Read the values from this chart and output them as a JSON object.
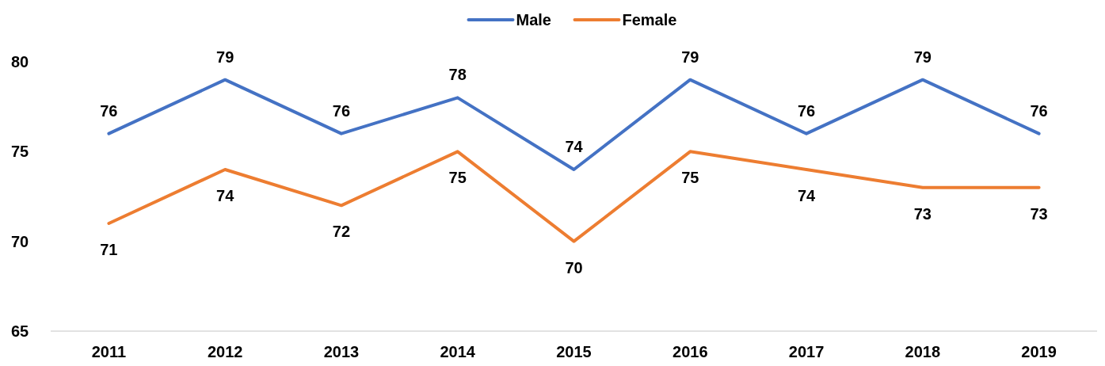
{
  "chart_data": {
    "type": "line",
    "categories": [
      "2011",
      "2012",
      "2013",
      "2014",
      "2015",
      "2016",
      "2017",
      "2018",
      "2019"
    ],
    "series": [
      {
        "name": "Male",
        "color": "#4472c4",
        "values": [
          76,
          79,
          76,
          78,
          74,
          79,
          76,
          79,
          76
        ]
      },
      {
        "name": "Female",
        "color": "#ed7d31",
        "values": [
          71,
          74,
          72,
          75,
          70,
          75,
          74,
          73,
          73
        ]
      }
    ],
    "ylim": [
      65,
      80
    ],
    "yticks": [
      65,
      70,
      75,
      80
    ],
    "grid": false,
    "legend": "top",
    "data_labels": true,
    "marker": "none",
    "line_style": "solid"
  }
}
